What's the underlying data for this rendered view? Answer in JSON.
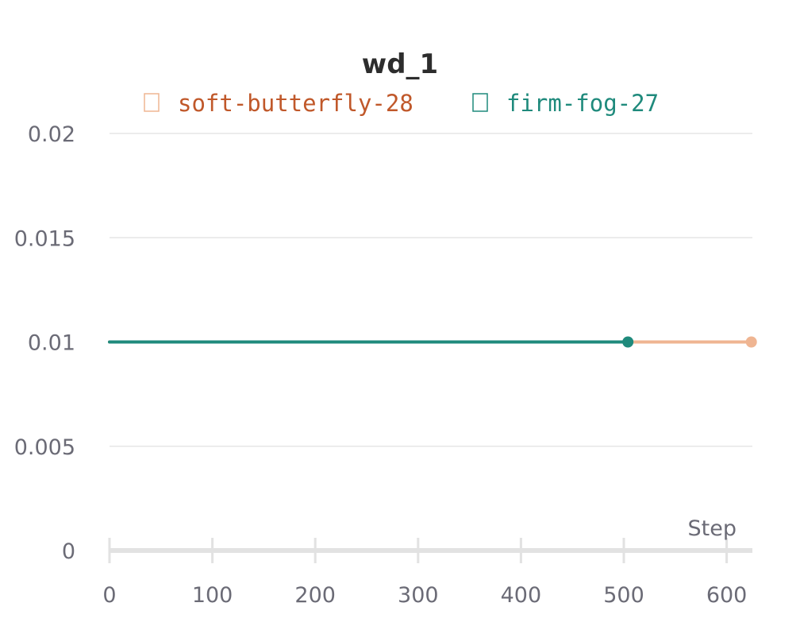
{
  "chart_data": {
    "type": "line",
    "title": "wd_1",
    "xlabel": "Step",
    "ylabel": "",
    "xlim": [
      0,
      625
    ],
    "ylim": [
      0,
      0.02
    ],
    "x_ticks": [
      0,
      100,
      200,
      300,
      400,
      500,
      600
    ],
    "x_tick_labels": [
      "0",
      "100",
      "200",
      "300",
      "400",
      "500",
      "600"
    ],
    "y_ticks": [
      0,
      0.005,
      0.01,
      0.015,
      0.02
    ],
    "y_tick_labels": [
      "0",
      "0.005",
      "0.01",
      "0.015",
      "0.02"
    ],
    "grid": true,
    "legend_position": "top",
    "series": [
      {
        "name": "soft-butterfly-28",
        "color": "#efb592",
        "legend_color": "#c0582a",
        "x": [
          0,
          100,
          200,
          300,
          400,
          500,
          624
        ],
        "y": [
          0.01,
          0.01,
          0.01,
          0.01,
          0.01,
          0.01,
          0.01
        ]
      },
      {
        "name": "firm-fog-27",
        "color": "#1f8a7c",
        "legend_color": "#1f8a7c",
        "x": [
          0,
          100,
          200,
          300,
          400,
          504
        ],
        "y": [
          0.01,
          0.01,
          0.01,
          0.01,
          0.01,
          0.01
        ]
      }
    ]
  }
}
